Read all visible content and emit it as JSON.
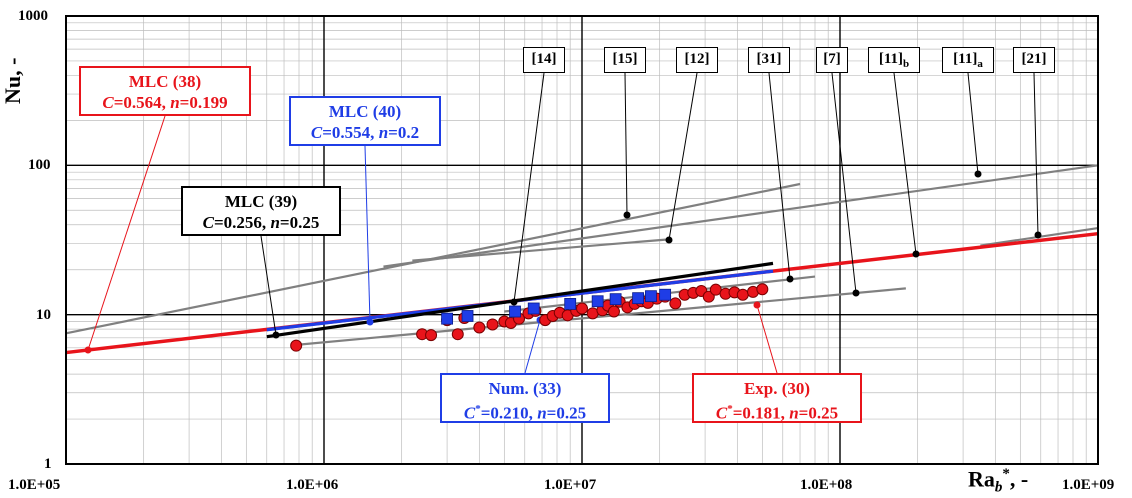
{
  "chart_data": {
    "type": "scatter",
    "x_scale": "log",
    "y_scale": "log",
    "xlim": [
      100000,
      1000000000
    ],
    "ylim": [
      1,
      1000
    ],
    "x_ticks": [
      "1.0E+05",
      "1.0E+06",
      "1.0E+07",
      "1.0E+08",
      "1.0E+09"
    ],
    "y_ticks": [
      "1",
      "10",
      "100",
      "1000"
    ],
    "xlabel_main": "Ra",
    "xlabel_sub": "b",
    "xlabel_sup": "*",
    "xlabel_tail": ", -",
    "ylabel": "Nu",
    "ylabel_tail": ", -",
    "grid": true,
    "colors": {
      "red": "#e8141b",
      "blue": "#1f3de6",
      "black": "#000000",
      "gray": "#808080"
    },
    "fits": [
      {
        "id": "mlc38",
        "color": "red",
        "C": 0.564,
        "n": 0.199,
        "x": [
          100000,
          1000000000
        ],
        "label_name": "MLC (38)",
        "label_c": "C",
        "label_cval": "=0.564, ",
        "label_n": "n",
        "label_nval": "=0.199"
      },
      {
        "id": "mlc40",
        "color": "blue",
        "C": 0.554,
        "n": 0.2,
        "x": [
          600000,
          55000000
        ],
        "label_name": "MLC (40)",
        "label_c": "C",
        "label_cval": "=0.554, ",
        "label_n": "n",
        "label_nval": "=0.2"
      },
      {
        "id": "mlc39",
        "color": "black",
        "C": 0.256,
        "n": 0.25,
        "x": [
          600000,
          55000000
        ],
        "label_name": "MLC (39)",
        "label_c": "C",
        "label_cval": "=0.256, ",
        "label_n": "n",
        "label_nval": "=0.25"
      }
    ],
    "ref_lines": [
      {
        "name": "[14]",
        "x": [
          100000,
          70000000
        ],
        "y": [
          7.5,
          75
        ]
      },
      {
        "name": "[15]",
        "x": [
          1700000,
          1000000000
        ],
        "y": [
          21,
          100
        ]
      },
      {
        "name": "[12]",
        "x": [
          2200000,
          22000000
        ],
        "y": [
          23,
          32
        ]
      },
      {
        "name": "[7]",
        "x": [
          800000,
          180000000
        ],
        "y": [
          6.3,
          15
        ]
      },
      {
        "name": "[31]",
        "x": [
          5000000,
          80000000
        ],
        "y": [
          10.5,
          18
        ]
      },
      {
        "name": "[21]",
        "x": [
          350000000,
          1000000000
        ],
        "y": [
          29,
          38
        ]
      }
    ],
    "ref_labels": [
      "[14]",
      "[15]",
      "[12]",
      "[31]",
      "[7]",
      "[11]b",
      "[11]a",
      "[21]"
    ],
    "series": [
      {
        "name": "Exp. (30)",
        "marker": "circle",
        "color": "red",
        "C": 0.181,
        "n": 0.25,
        "x": [
          780000,
          2400000,
          2600000,
          3000000,
          3300000,
          3500000,
          4000000,
          4500000,
          5000000,
          5300000,
          5700000,
          6200000,
          6600000,
          7200000,
          7700000,
          8200000,
          8800000,
          9500000,
          10000000,
          11000000,
          12000000,
          12600000,
          13300000,
          14000000,
          15000000,
          16000000,
          17000000,
          18000000,
          19500000,
          21000000,
          23000000,
          25000000,
          27000000,
          29000000,
          31000000,
          33000000,
          36000000,
          39000000,
          42000000,
          46000000,
          50000000
        ],
        "y": [
          6.2,
          7.4,
          7.3,
          9.2,
          7.4,
          9.5,
          8.2,
          8.6,
          9.0,
          8.8,
          9.4,
          10.2,
          10.6,
          9.2,
          9.8,
          10.3,
          9.9,
          10.6,
          11.0,
          10.2,
          10.7,
          11.5,
          10.5,
          12.2,
          11.2,
          11.8,
          12.3,
          12.0,
          12.8,
          13.2,
          11.9,
          13.6,
          14.0,
          14.4,
          13.2,
          14.7,
          13.8,
          14.1,
          13.6,
          14.2,
          14.8
        ],
        "label_name": "Exp. (30)",
        "label_c": "C",
        "label_csup": "*",
        "label_cval": "=0.181, ",
        "label_n": "n",
        "label_nval": "=0.25"
      },
      {
        "name": "Num. (33)",
        "marker": "square",
        "color": "blue",
        "C": 0.21,
        "n": 0.25,
        "x": [
          3000000,
          3600000,
          5500000,
          6500000,
          9000000,
          11500000,
          13500000,
          16500000,
          18500000,
          21000000
        ],
        "y": [
          9.4,
          9.8,
          10.5,
          11.0,
          11.8,
          12.3,
          12.7,
          12.9,
          13.3,
          13.6
        ],
        "label_name": "Num. (33)",
        "label_c": "C",
        "label_csup": "*",
        "label_cval": "=0.210, ",
        "label_n": "n",
        "label_nval": "=0.25"
      }
    ]
  }
}
